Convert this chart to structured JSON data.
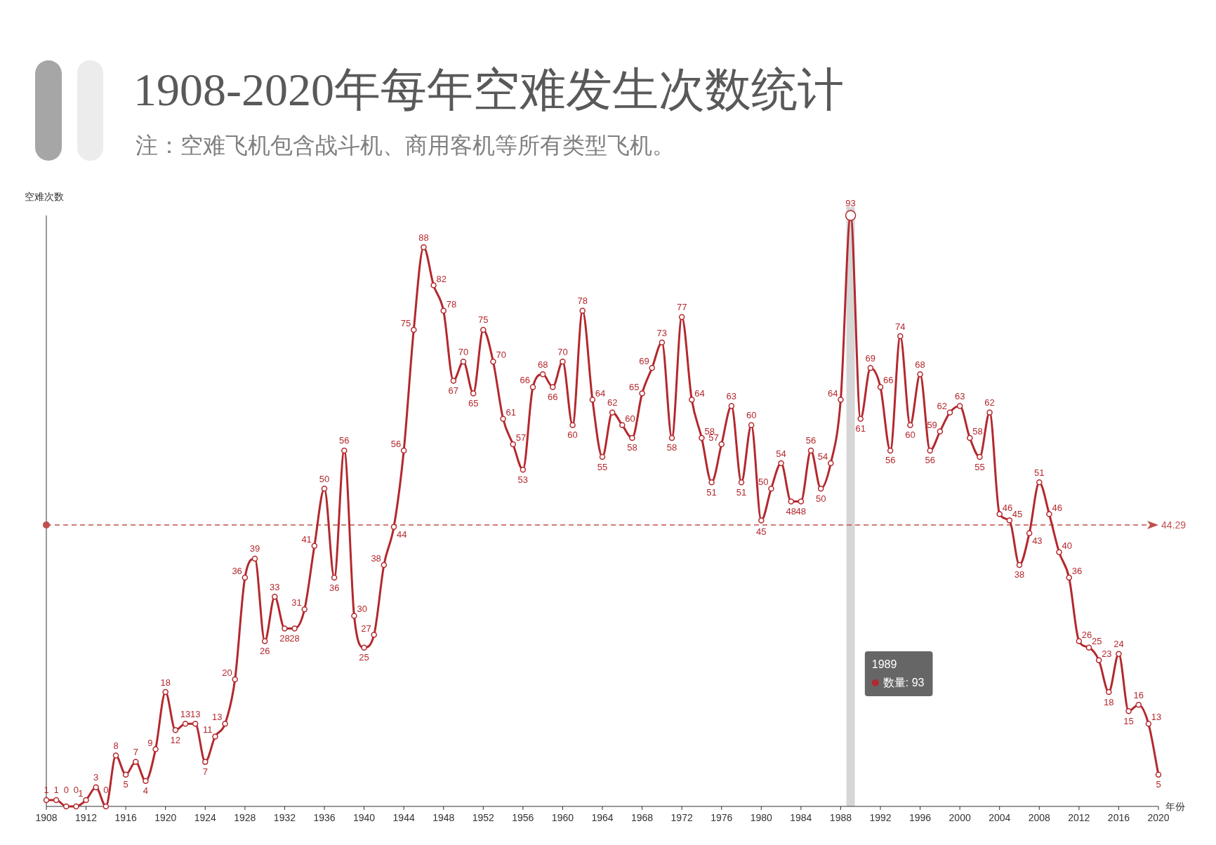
{
  "chart_data": {
    "type": "line",
    "title": "1908-2020年每年空难发生次数统计",
    "subtitle": "注：空难飞机包含战斗机、商用客机等所有类型飞机。",
    "xlabel": "年份",
    "ylabel": "空难次数",
    "x": [
      1908,
      1909,
      1910,
      1911,
      1912,
      1913,
      1914,
      1915,
      1916,
      1917,
      1918,
      1919,
      1920,
      1921,
      1922,
      1923,
      1924,
      1925,
      1926,
      1927,
      1928,
      1929,
      1930,
      1931,
      1932,
      1933,
      1934,
      1935,
      1936,
      1937,
      1938,
      1939,
      1940,
      1941,
      1942,
      1943,
      1944,
      1945,
      1946,
      1947,
      1948,
      1949,
      1950,
      1951,
      1952,
      1953,
      1954,
      1955,
      1956,
      1957,
      1958,
      1959,
      1960,
      1961,
      1962,
      1963,
      1964,
      1965,
      1966,
      1967,
      1968,
      1969,
      1970,
      1971,
      1972,
      1973,
      1974,
      1975,
      1976,
      1977,
      1978,
      1979,
      1980,
      1981,
      1982,
      1983,
      1984,
      1985,
      1986,
      1987,
      1988,
      1989,
      1990,
      1991,
      1992,
      1993,
      1994,
      1995,
      1996,
      1997,
      1998,
      1999,
      2000,
      2001,
      2002,
      2003,
      2004,
      2005,
      2006,
      2007,
      2008,
      2009,
      2010,
      2011,
      2012,
      2013,
      2014,
      2015,
      2016,
      2017,
      2018,
      2019,
      2020
    ],
    "series": [
      {
        "color": "#b3282d",
        "values": [
          1,
          1,
          0,
          0,
          1,
          3,
          0,
          8,
          5,
          7,
          4,
          9,
          18,
          12,
          13,
          13,
          7,
          11,
          13,
          20,
          36,
          39,
          26,
          33,
          28,
          28,
          31,
          41,
          50,
          36,
          56,
          30,
          25,
          27,
          38,
          44,
          56,
          75,
          88,
          82,
          78,
          67,
          70,
          65,
          75,
          70,
          61,
          57,
          53,
          66,
          68,
          66,
          70,
          60,
          78,
          64,
          55,
          62,
          60,
          58,
          65,
          69,
          73,
          58,
          77,
          64,
          58,
          51,
          57,
          63,
          51,
          60,
          45,
          50,
          54,
          48,
          48,
          56,
          50,
          54,
          64,
          93,
          61,
          69,
          66,
          56,
          74,
          60,
          68,
          56,
          59,
          62,
          63,
          58,
          55,
          62,
          46,
          45,
          38,
          43,
          51,
          46,
          40,
          36,
          26,
          25,
          23,
          18,
          24,
          15,
          16,
          13,
          5
        ]
      }
    ],
    "xlim": [
      1908,
      2020
    ],
    "xticks": [
      1908,
      1912,
      1916,
      1920,
      1924,
      1928,
      1932,
      1936,
      1940,
      1944,
      1948,
      1952,
      1956,
      1960,
      1964,
      1968,
      1972,
      1976,
      1980,
      1984,
      1988,
      1992,
      1996,
      2000,
      2004,
      2008,
      2012,
      2016,
      2020
    ],
    "ylim": [
      0,
      93
    ],
    "tick_labels": "x",
    "data_labels": true,
    "marker": "circle",
    "ref_lines": [
      {
        "axis": "y",
        "value": 44.29,
        "label": "44.29",
        "color": "#c0504d",
        "line_style": "dashed"
      },
      {
        "axis": "x",
        "value": 1989,
        "color": "#d6d6d6"
      }
    ],
    "annotations": [
      "1989",
      "数量: 93"
    ]
  }
}
